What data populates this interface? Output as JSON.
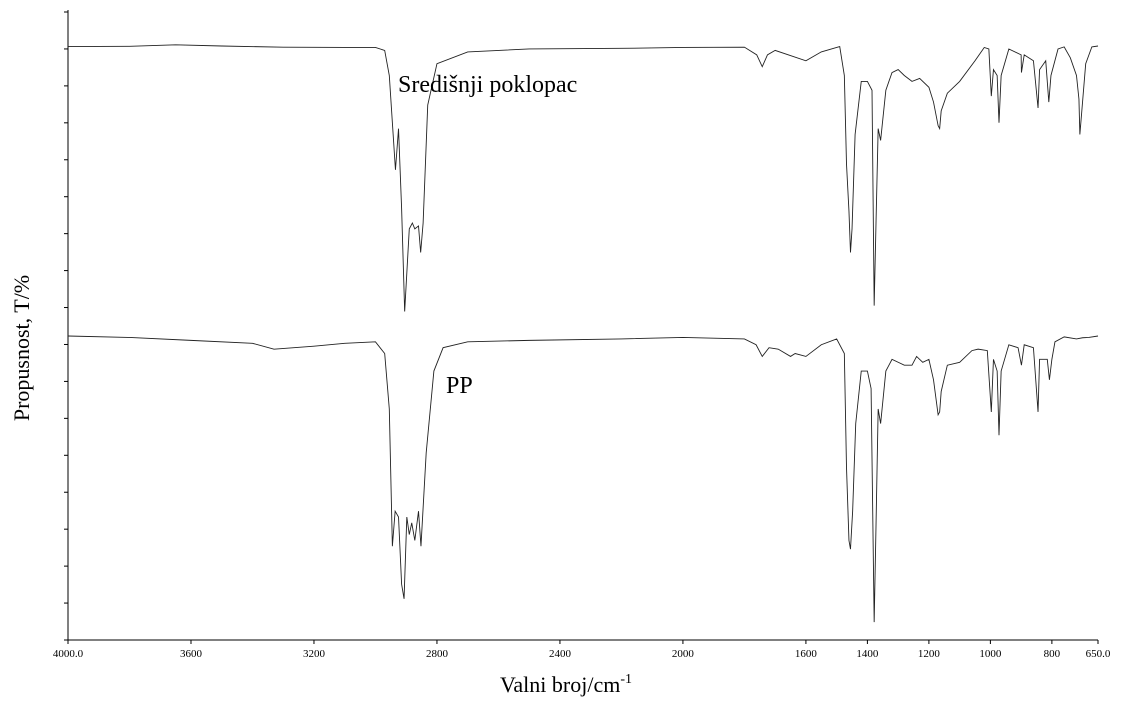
{
  "chart_data": {
    "type": "line",
    "title": "",
    "xlabel": "Valni broj/cm",
    "xlabel_superscript": "-1",
    "ylabel": "Propusnost, T/%",
    "xlim": [
      4000,
      650
    ],
    "x_reversed": true,
    "x_ticks": [
      {
        "value": 4000,
        "label": "4000.0"
      },
      {
        "value": 3600,
        "label": "3600"
      },
      {
        "value": 3200,
        "label": "3200"
      },
      {
        "value": 2800,
        "label": "2800"
      },
      {
        "value": 2400,
        "label": "2400"
      },
      {
        "value": 2000,
        "label": "2000"
      },
      {
        "value": 1600,
        "label": "1600"
      },
      {
        "value": 1400,
        "label": "1400"
      },
      {
        "value": 1200,
        "label": "1200"
      },
      {
        "value": 1000,
        "label": "1000"
      },
      {
        "value": 800,
        "label": "800"
      },
      {
        "value": 650,
        "label": "650.0"
      }
    ],
    "y_tick_count": 18,
    "y_tick_labels_shown": false,
    "grid": false,
    "series": [
      {
        "name": "Središnji poklopac",
        "points": [
          [
            4000,
            0.2
          ],
          [
            3800,
            0.1
          ],
          [
            3650,
            -0.4
          ],
          [
            3500,
            0.0
          ],
          [
            3300,
            0.4
          ],
          [
            3100,
            0.5
          ],
          [
            3000,
            0.5
          ],
          [
            2970,
            1.5
          ],
          [
            2955,
            10
          ],
          [
            2935,
            42
          ],
          [
            2925,
            28
          ],
          [
            2915,
            55
          ],
          [
            2905,
            90
          ],
          [
            2890,
            62
          ],
          [
            2880,
            60
          ],
          [
            2872,
            62
          ],
          [
            2860,
            61
          ],
          [
            2853,
            70
          ],
          [
            2845,
            60
          ],
          [
            2830,
            20
          ],
          [
            2800,
            6
          ],
          [
            2700,
            2
          ],
          [
            2500,
            1
          ],
          [
            2200,
            0.8
          ],
          [
            2000,
            0.5
          ],
          [
            1800,
            0.4
          ],
          [
            1760,
            3
          ],
          [
            1742,
            7
          ],
          [
            1725,
            3
          ],
          [
            1700,
            1.5
          ],
          [
            1600,
            5
          ],
          [
            1550,
            2
          ],
          [
            1500,
            0.5
          ],
          [
            1490,
            0.2
          ],
          [
            1475,
            10
          ],
          [
            1468,
            40
          ],
          [
            1460,
            56
          ],
          [
            1455,
            70
          ],
          [
            1450,
            62
          ],
          [
            1440,
            30
          ],
          [
            1420,
            12
          ],
          [
            1400,
            12
          ],
          [
            1385,
            15
          ],
          [
            1378,
            88
          ],
          [
            1372,
            60
          ],
          [
            1365,
            28
          ],
          [
            1357,
            32
          ],
          [
            1340,
            15
          ],
          [
            1320,
            9
          ],
          [
            1300,
            8
          ],
          [
            1280,
            10
          ],
          [
            1255,
            12
          ],
          [
            1230,
            11
          ],
          [
            1200,
            14
          ],
          [
            1185,
            19
          ],
          [
            1170,
            27
          ],
          [
            1165,
            28
          ],
          [
            1160,
            22
          ],
          [
            1140,
            16
          ],
          [
            1100,
            12
          ],
          [
            1050,
            5
          ],
          [
            1020,
            0.5
          ],
          [
            1005,
            1
          ],
          [
            997,
            17
          ],
          [
            990,
            8
          ],
          [
            978,
            10
          ],
          [
            972,
            26
          ],
          [
            965,
            10
          ],
          [
            940,
            1
          ],
          [
            900,
            3
          ],
          [
            899,
            9
          ],
          [
            890,
            3
          ],
          [
            860,
            5
          ],
          [
            845,
            21
          ],
          [
            840,
            8
          ],
          [
            820,
            5
          ],
          [
            810,
            19
          ],
          [
            803,
            10
          ],
          [
            780,
            1
          ],
          [
            760,
            0.3
          ],
          [
            740,
            4
          ],
          [
            720,
            10
          ],
          [
            712,
            18
          ],
          [
            709,
            30
          ],
          [
            705,
            25
          ],
          [
            690,
            6
          ],
          [
            670,
            0.3
          ],
          [
            650,
            0.0
          ]
        ]
      },
      {
        "name": "PP",
        "points": [
          [
            4000,
            0.0
          ],
          [
            3800,
            0.5
          ],
          [
            3600,
            1.5
          ],
          [
            3400,
            2.5
          ],
          [
            3330,
            4.5
          ],
          [
            3200,
            3.5
          ],
          [
            3100,
            2.5
          ],
          [
            3000,
            2.0
          ],
          [
            2970,
            6
          ],
          [
            2955,
            25
          ],
          [
            2945,
            72
          ],
          [
            2936,
            60
          ],
          [
            2925,
            62
          ],
          [
            2915,
            85
          ],
          [
            2907,
            90
          ],
          [
            2898,
            62
          ],
          [
            2890,
            68
          ],
          [
            2882,
            64
          ],
          [
            2872,
            70
          ],
          [
            2860,
            60
          ],
          [
            2852,
            72
          ],
          [
            2835,
            40
          ],
          [
            2810,
            12
          ],
          [
            2780,
            4
          ],
          [
            2700,
            2
          ],
          [
            2500,
            1.5
          ],
          [
            2200,
            1.0
          ],
          [
            2000,
            0.5
          ],
          [
            1800,
            1
          ],
          [
            1762,
            3
          ],
          [
            1742,
            7
          ],
          [
            1720,
            4
          ],
          [
            1690,
            4.5
          ],
          [
            1650,
            7
          ],
          [
            1635,
            6
          ],
          [
            1600,
            7
          ],
          [
            1550,
            3
          ],
          [
            1500,
            1
          ],
          [
            1475,
            6
          ],
          [
            1468,
            45
          ],
          [
            1460,
            70
          ],
          [
            1455,
            73
          ],
          [
            1448,
            60
          ],
          [
            1438,
            30
          ],
          [
            1420,
            12
          ],
          [
            1400,
            12
          ],
          [
            1388,
            18
          ],
          [
            1378,
            98
          ],
          [
            1372,
            65
          ],
          [
            1365,
            25
          ],
          [
            1357,
            30
          ],
          [
            1340,
            12
          ],
          [
            1320,
            8
          ],
          [
            1300,
            9
          ],
          [
            1280,
            10
          ],
          [
            1255,
            10
          ],
          [
            1240,
            7
          ],
          [
            1220,
            9
          ],
          [
            1200,
            8
          ],
          [
            1185,
            15
          ],
          [
            1170,
            27
          ],
          [
            1165,
            26
          ],
          [
            1160,
            19
          ],
          [
            1140,
            10
          ],
          [
            1100,
            9
          ],
          [
            1060,
            5
          ],
          [
            1040,
            4.5
          ],
          [
            1010,
            5
          ],
          [
            997,
            26
          ],
          [
            990,
            8
          ],
          [
            978,
            12
          ],
          [
            972,
            34
          ],
          [
            965,
            12
          ],
          [
            940,
            3
          ],
          [
            910,
            4
          ],
          [
            899,
            10
          ],
          [
            890,
            3
          ],
          [
            860,
            4
          ],
          [
            845,
            26
          ],
          [
            840,
            8
          ],
          [
            815,
            8
          ],
          [
            808,
            15
          ],
          [
            800,
            8
          ],
          [
            790,
            2
          ],
          [
            760,
            0.3
          ],
          [
            720,
            1.0
          ],
          [
            700,
            0.6
          ],
          [
            680,
            0.5
          ],
          [
            650,
            0.0
          ]
        ]
      }
    ]
  }
}
